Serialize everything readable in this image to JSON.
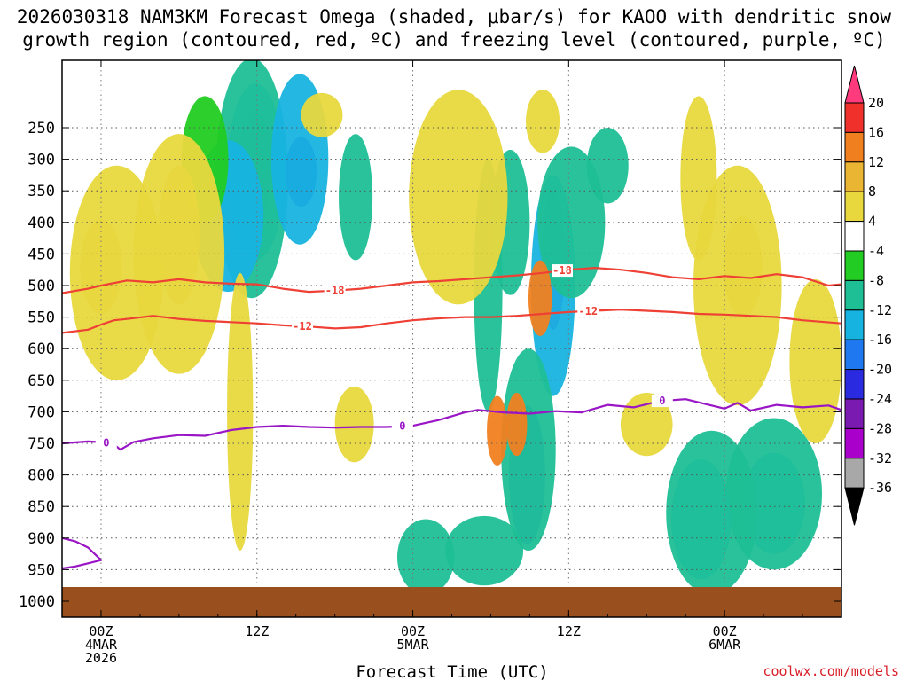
{
  "chart_data": {
    "type": "heatmap",
    "title_line1": "2026030318 NAM3KM Forecast Omega (shaded, μbar/s) for KAOO with dendritic snow",
    "title_line2": "growth region (contoured, red, ºC) and freezing level (contoured, purple, ºC)",
    "xlabel": "Forecast Time (UTC)",
    "credit": "coolwx.com/models",
    "x_range_hours": [
      -3,
      57
    ],
    "y_range_hpa": [
      200,
      1050
    ],
    "pressure_ticks": [
      250,
      300,
      350,
      400,
      450,
      500,
      550,
      600,
      650,
      700,
      750,
      800,
      850,
      900,
      950,
      1000
    ],
    "time_ticks": [
      {
        "hour": 0,
        "lines": [
          "00Z",
          "4MAR",
          "2026"
        ]
      },
      {
        "hour": 12,
        "lines": [
          "12Z"
        ]
      },
      {
        "hour": 24,
        "lines": [
          "00Z",
          "5MAR"
        ]
      },
      {
        "hour": 36,
        "lines": [
          "12Z"
        ]
      },
      {
        "hour": 48,
        "lines": [
          "00Z",
          "6MAR"
        ]
      }
    ],
    "colorbar": {
      "labels": [
        "20",
        "16",
        "12",
        "8",
        "4",
        "-4",
        "-8",
        "-12",
        "-16",
        "-20",
        "-24",
        "-28",
        "-32",
        "-36"
      ],
      "colors": [
        "#ff3b7e",
        "#f0302a",
        "#f07f20",
        "#e9b533",
        "#e8d83e",
        "#ffffff",
        "#22cc22",
        "#1fbf96",
        "#17b3e0",
        "#1f78f0",
        "#2a2ae0",
        "#7a1ab0",
        "#aa00cc",
        "#a8a8a8",
        "#000000"
      ]
    },
    "omega_features": [
      {
        "hour": 11.9,
        "p": 310,
        "rh": 1.2,
        "rp": 85,
        "v": -30
      },
      {
        "hour": 11.9,
        "p": 320,
        "rh": 2.2,
        "rp": 140,
        "v": -14
      },
      {
        "hour": 11.6,
        "p": 330,
        "rh": 2.8,
        "rp": 190,
        "v": -9
      },
      {
        "hour": 15.4,
        "p": 320,
        "rh": 1.2,
        "rp": 55,
        "v": -22
      },
      {
        "hour": 15.3,
        "p": 300,
        "rh": 2.2,
        "rp": 135,
        "v": -12
      },
      {
        "hour": 19.6,
        "p": 360,
        "rh": 1.3,
        "rp": 100,
        "v": -8
      },
      {
        "hour": 9.8,
        "p": 390,
        "rh": 2.7,
        "rp": 120,
        "v": -12
      },
      {
        "hour": 8.0,
        "p": 300,
        "rh": 1.8,
        "rp": 100,
        "v": -7
      },
      {
        "hour": 34.8,
        "p": 460,
        "rh": 0.9,
        "rp": 110,
        "v": -28
      },
      {
        "hour": 34.8,
        "p": 500,
        "rh": 1.7,
        "rp": 175,
        "v": -12
      },
      {
        "hour": 36.2,
        "p": 400,
        "rh": 2.6,
        "rp": 120,
        "v": -8
      },
      {
        "hour": 31.5,
        "p": 400,
        "rh": 1.5,
        "rp": 115,
        "v": -8
      },
      {
        "hour": 29.8,
        "p": 500,
        "rh": 1.1,
        "rp": 200,
        "v": -8
      },
      {
        "hour": 39.0,
        "p": 310,
        "rh": 1.6,
        "rp": 60,
        "v": -8
      },
      {
        "hour": 32.8,
        "p": 800,
        "rh": 1.4,
        "rp": 110,
        "v": -16
      },
      {
        "hour": 32.9,
        "p": 760,
        "rh": 2.1,
        "rp": 160,
        "v": -10
      },
      {
        "hour": 51.8,
        "p": 845,
        "rh": 2.4,
        "rp": 80,
        "v": -12
      },
      {
        "hour": 51.8,
        "p": 830,
        "rh": 3.7,
        "rp": 120,
        "v": -8
      },
      {
        "hour": 46.2,
        "p": 870,
        "rh": 2.3,
        "rp": 95,
        "v": -12
      },
      {
        "hour": 47.0,
        "p": 860,
        "rh": 3.5,
        "rp": 130,
        "v": -8
      },
      {
        "hour": 25.0,
        "p": 930,
        "rh": 2.2,
        "rp": 60,
        "v": -8
      },
      {
        "hour": 29.5,
        "p": 920,
        "rh": 3.0,
        "rp": 55,
        "v": -8
      },
      {
        "hour": 0.0,
        "p": 470,
        "rh": 1.6,
        "rp": 75,
        "v": 10
      },
      {
        "hour": 1.2,
        "p": 480,
        "rh": 3.6,
        "rp": 170,
        "v": 5
      },
      {
        "hour": 6.0,
        "p": 420,
        "rh": 1.6,
        "rp": 110,
        "v": 11
      },
      {
        "hour": 6.0,
        "p": 450,
        "rh": 3.5,
        "rp": 190,
        "v": 5
      },
      {
        "hour": 27.5,
        "p": 360,
        "rh": 3.8,
        "rp": 170,
        "v": 5
      },
      {
        "hour": 33.8,
        "p": 520,
        "rh": 0.9,
        "rp": 60,
        "v": 12
      },
      {
        "hour": 30.5,
        "p": 730,
        "rh": 0.8,
        "rp": 55,
        "v": 14
      },
      {
        "hour": 32.0,
        "p": 720,
        "rh": 0.8,
        "rp": 50,
        "v": 14
      },
      {
        "hour": 34.0,
        "p": 240,
        "rh": 1.3,
        "rp": 50,
        "v": 5
      },
      {
        "hour": 49.4,
        "p": 470,
        "rh": 1.5,
        "rp": 80,
        "v": 11
      },
      {
        "hour": 49.0,
        "p": 500,
        "rh": 3.4,
        "rp": 190,
        "v": 5
      },
      {
        "hour": 55.0,
        "p": 620,
        "rh": 2.0,
        "rp": 130,
        "v": 6
      },
      {
        "hour": 10.7,
        "p": 700,
        "rh": 1.0,
        "rp": 220,
        "v": 5
      },
      {
        "hour": 17.0,
        "p": 230,
        "rh": 1.6,
        "rp": 35,
        "v": 5
      },
      {
        "hour": 46.0,
        "p": 330,
        "rh": 1.4,
        "rp": 130,
        "v": 5
      },
      {
        "hour": 42.0,
        "p": 720,
        "rh": 2.0,
        "rp": 50,
        "v": 5
      },
      {
        "hour": 19.5,
        "p": 720,
        "rh": 1.5,
        "rp": 60,
        "v": 5
      }
    ],
    "isotherm_minus12": {
      "label": "-12",
      "color": "#ee4035",
      "points": [
        [
          -3,
          575
        ],
        [
          -1,
          570
        ],
        [
          0,
          562
        ],
        [
          1,
          555
        ],
        [
          2,
          553
        ],
        [
          4,
          548
        ],
        [
          6,
          553
        ],
        [
          8,
          556
        ],
        [
          10,
          558
        ],
        [
          12,
          560
        ],
        [
          14,
          563
        ],
        [
          16,
          565
        ],
        [
          18,
          568
        ],
        [
          20,
          566
        ],
        [
          22,
          560
        ],
        [
          24,
          555
        ],
        [
          26,
          552
        ],
        [
          28,
          550
        ],
        [
          30,
          550
        ],
        [
          32,
          548
        ],
        [
          34,
          545
        ],
        [
          36,
          542
        ],
        [
          38,
          540
        ],
        [
          40,
          538
        ],
        [
          42,
          540
        ],
        [
          44,
          542
        ],
        [
          46,
          545
        ],
        [
          48,
          546
        ],
        [
          50,
          548
        ],
        [
          52,
          550
        ],
        [
          54,
          555
        ],
        [
          57,
          560
        ]
      ]
    },
    "isotherm_minus18": {
      "label": "-18",
      "color": "#ee4035",
      "points": [
        [
          -3,
          512
        ],
        [
          -1,
          505
        ],
        [
          0,
          500
        ],
        [
          2,
          492
        ],
        [
          4,
          495
        ],
        [
          6,
          490
        ],
        [
          8,
          495
        ],
        [
          10,
          497
        ],
        [
          12,
          498
        ],
        [
          14,
          505
        ],
        [
          16,
          510
        ],
        [
          18,
          508
        ],
        [
          20,
          505
        ],
        [
          22,
          500
        ],
        [
          24,
          495
        ],
        [
          26,
          493
        ],
        [
          28,
          490
        ],
        [
          30,
          487
        ],
        [
          32,
          484
        ],
        [
          34,
          480
        ],
        [
          36,
          475
        ],
        [
          38,
          472
        ],
        [
          40,
          475
        ],
        [
          42,
          480
        ],
        [
          44,
          487
        ],
        [
          46,
          490
        ],
        [
          48,
          485
        ],
        [
          50,
          488
        ],
        [
          52,
          482
        ],
        [
          54,
          487
        ],
        [
          56,
          500
        ],
        [
          57,
          498
        ]
      ]
    },
    "isotherm_0_freezing_level": {
      "label": "0",
      "color": "#9915c5",
      "points": [
        [
          -3,
          750
        ],
        [
          -1,
          747
        ],
        [
          0,
          748
        ],
        [
          1,
          752
        ],
        [
          1.5,
          760
        ],
        [
          2.5,
          748
        ],
        [
          4,
          742
        ],
        [
          6,
          737
        ],
        [
          8,
          738
        ],
        [
          10,
          729
        ],
        [
          12,
          724
        ],
        [
          14,
          722
        ],
        [
          16,
          724
        ],
        [
          18,
          725
        ],
        [
          20,
          724
        ],
        [
          22,
          724
        ],
        [
          24,
          722
        ],
        [
          26,
          713
        ],
        [
          28,
          701
        ],
        [
          29,
          697
        ],
        [
          31,
          701
        ],
        [
          33,
          703
        ],
        [
          35,
          699
        ],
        [
          37,
          701
        ],
        [
          39,
          689
        ],
        [
          41,
          693
        ],
        [
          43,
          683
        ],
        [
          45,
          680
        ],
        [
          47,
          690
        ],
        [
          48,
          695
        ],
        [
          49,
          686
        ],
        [
          50,
          698
        ],
        [
          52,
          689
        ],
        [
          54,
          693
        ],
        [
          56,
          690
        ],
        [
          57,
          697
        ]
      ]
    },
    "isotherm_0_low": {
      "color": "#9915c5",
      "points": [
        [
          -3,
          900
        ],
        [
          -2,
          905
        ],
        [
          -1,
          915
        ],
        [
          0,
          935
        ],
        [
          -1,
          940
        ],
        [
          -2,
          945
        ],
        [
          -3,
          948
        ]
      ]
    }
  }
}
